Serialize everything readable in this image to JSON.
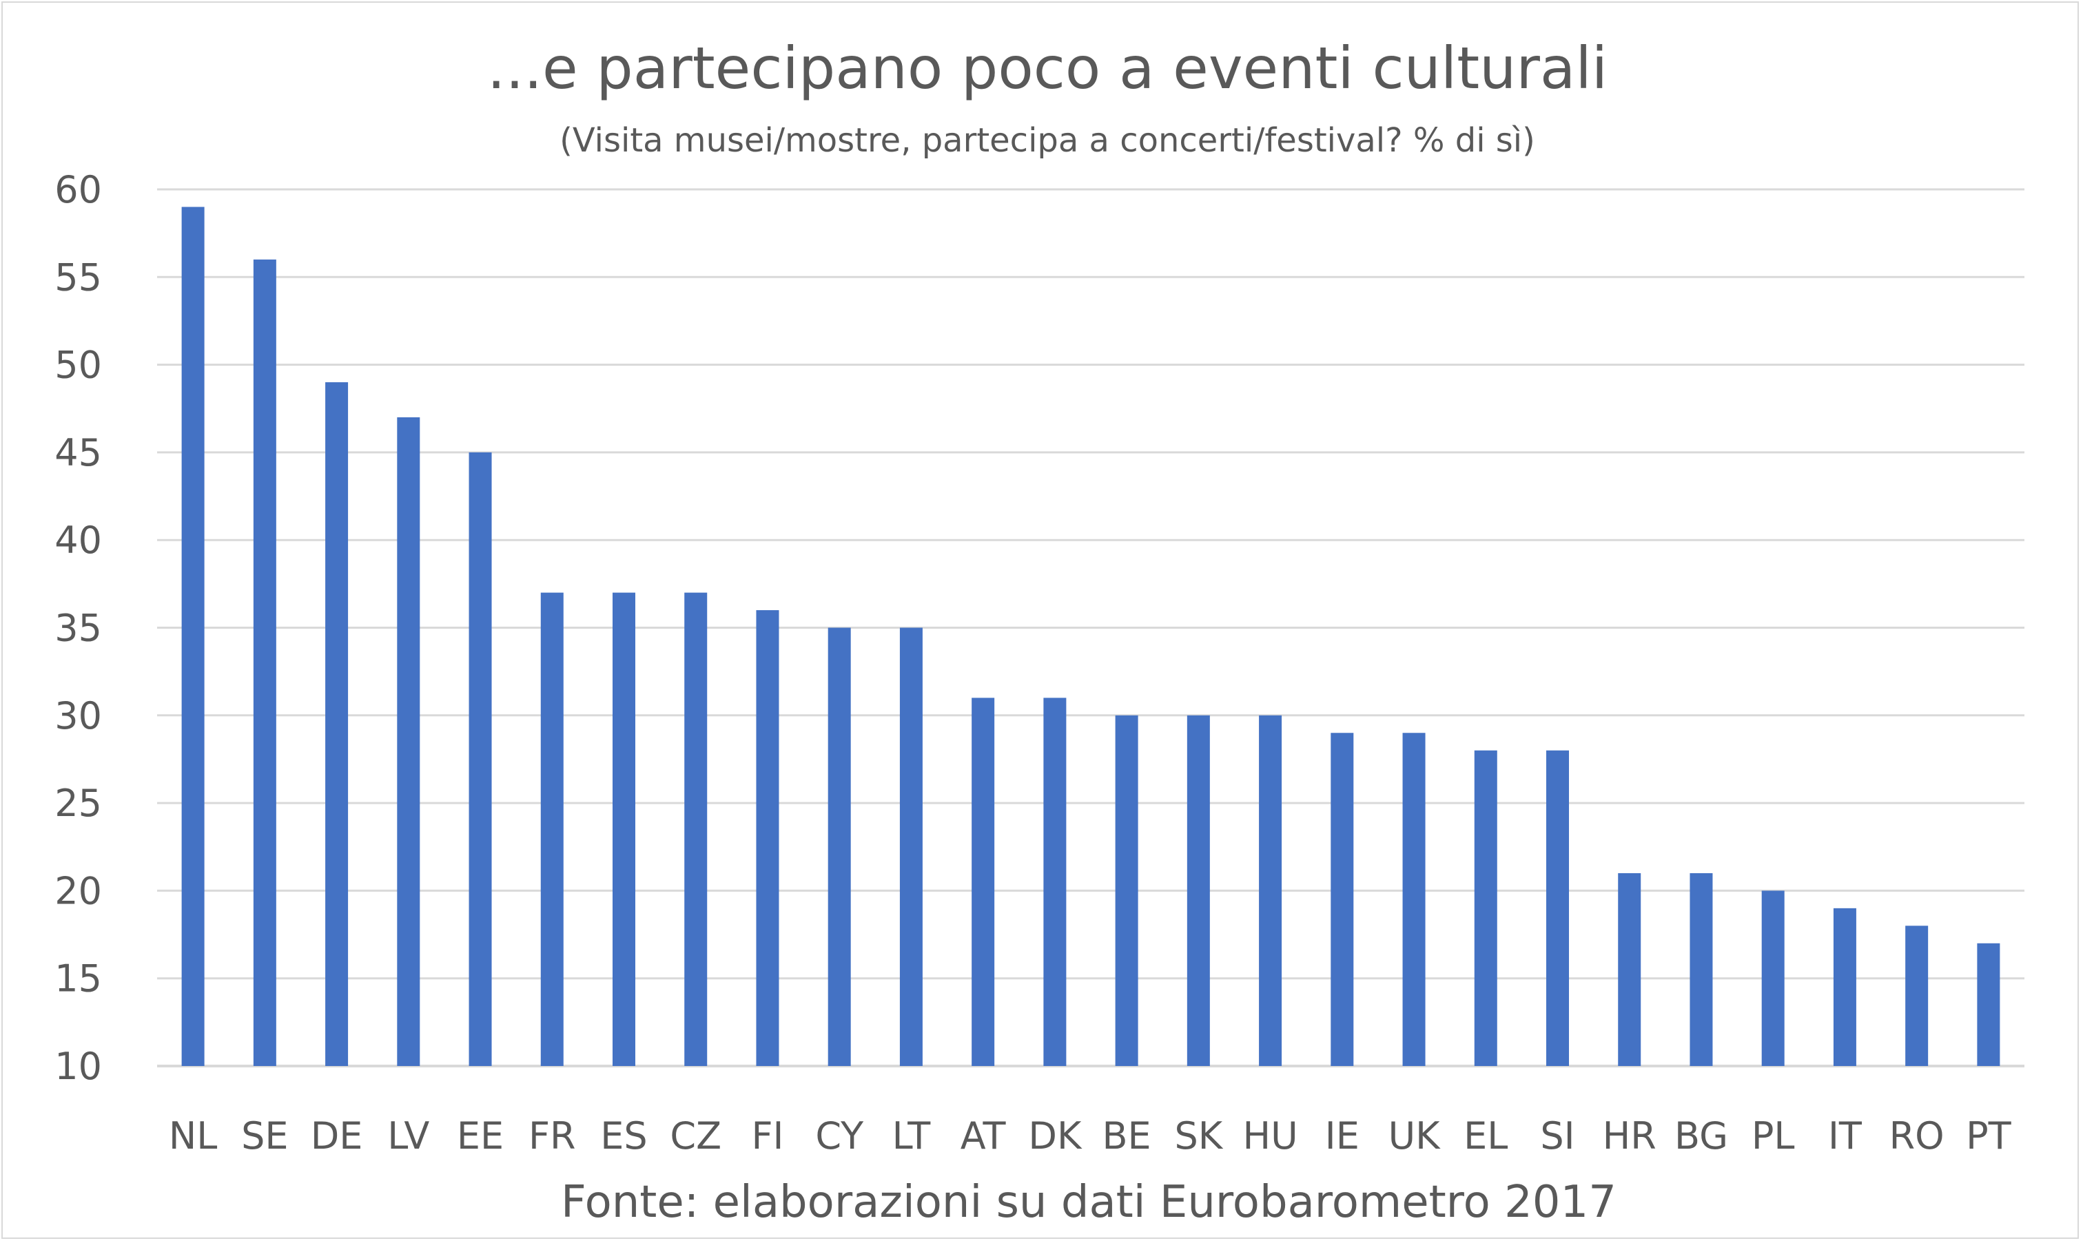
{
  "chart_data": {
    "type": "bar",
    "title": "...e partecipano poco a eventi culturali",
    "subtitle": "(Visita musei/mostre, partecipa a concerti/festival? % di sì)",
    "source": "Fonte: elaborazioni su dati Eurobarometro 2017",
    "categories": [
      "NL",
      "SE",
      "DE",
      "LV",
      "EE",
      "FR",
      "ES",
      "CZ",
      "FI",
      "CY",
      "LT",
      "AT",
      "DK",
      "BE",
      "SK",
      "HU",
      "IE",
      "UK",
      "EL",
      "SI",
      "HR",
      "BG",
      "PL",
      "IT",
      "RO",
      "PT"
    ],
    "values": [
      59,
      56,
      49,
      47,
      45,
      37,
      37,
      37,
      36,
      35,
      35,
      31,
      31,
      30,
      30,
      30,
      29,
      29,
      28,
      28,
      21,
      21,
      20,
      19,
      18,
      17
    ],
    "ylim": [
      10,
      60
    ],
    "yticks": [
      "10",
      "15",
      "20",
      "25",
      "30",
      "35",
      "40",
      "45",
      "50",
      "55",
      "60"
    ],
    "grid": true,
    "legend": "none",
    "bar_color": "#4472c4",
    "grid_color": "#d9d9d9"
  }
}
